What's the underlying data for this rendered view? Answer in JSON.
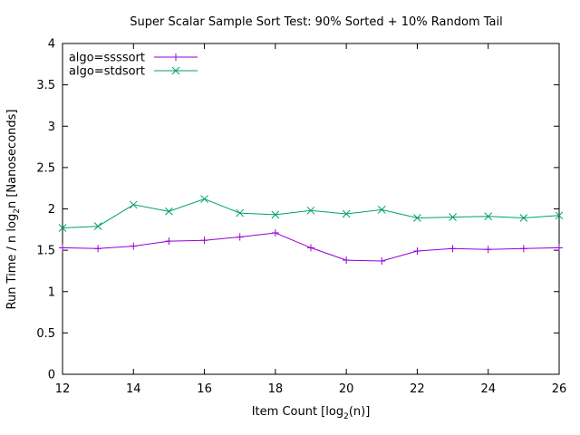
{
  "chart_data": {
    "type": "line",
    "title": "Super Scalar Sample Sort Test: 90% Sorted + 10% Random Tail",
    "xlabel_prefix": "Item Count [log",
    "xlabel_sub": "2",
    "xlabel_suffix": "(n)]",
    "ylabel_prefix": "Run Time / n log",
    "ylabel_sub": "2",
    "ylabel_suffix": "n [Nanoseconds]",
    "xlim": [
      12,
      26
    ],
    "ylim": [
      0,
      4
    ],
    "xticks": [
      12,
      14,
      16,
      18,
      20,
      22,
      24,
      26
    ],
    "yticks": [
      0,
      0.5,
      1,
      1.5,
      2,
      2.5,
      3,
      3.5,
      4
    ],
    "grid": false,
    "legend_position": "top-left",
    "series": [
      {
        "name": "algo=ssssort",
        "color": "#9400d3",
        "marker": "plus",
        "x": [
          12,
          13,
          14,
          15,
          16,
          17,
          18,
          19,
          20,
          21,
          22,
          23,
          24,
          25,
          26
        ],
        "values": [
          1.53,
          1.52,
          1.55,
          1.61,
          1.62,
          1.66,
          1.71,
          1.53,
          1.38,
          1.37,
          1.49,
          1.52,
          1.51,
          1.52,
          1.53
        ]
      },
      {
        "name": "algo=stdsort",
        "color": "#009e73",
        "marker": "cross",
        "x": [
          12,
          13,
          14,
          15,
          16,
          17,
          18,
          19,
          20,
          21,
          22,
          23,
          24,
          25,
          26
        ],
        "values": [
          1.77,
          1.79,
          2.05,
          1.97,
          2.12,
          1.95,
          1.93,
          1.98,
          1.94,
          1.99,
          1.89,
          1.9,
          1.91,
          1.89,
          1.92
        ]
      }
    ]
  }
}
